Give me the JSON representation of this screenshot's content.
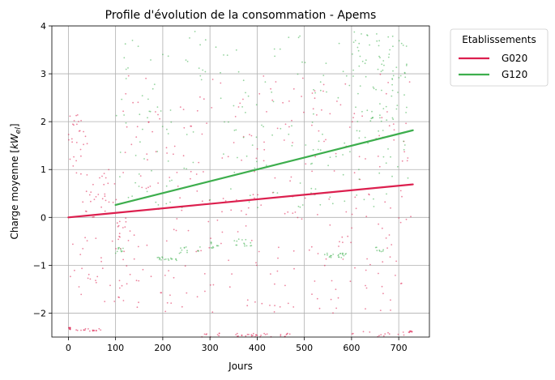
{
  "chart_data": {
    "type": "scatter",
    "title": "Profile d'évolution de la consommation - Apems",
    "xlabel": "Jours",
    "ylabel_main": "Charge moyenne [",
    "ylabel_math": "kW",
    "ylabel_sub": "el",
    "ylabel_end": "]",
    "xlim": [
      -35,
      765
    ],
    "ylim": [
      -2.5,
      4
    ],
    "xticks": [
      0,
      100,
      200,
      300,
      400,
      500,
      600,
      700
    ],
    "yticks": [
      -2,
      -1,
      0,
      1,
      2,
      3,
      4
    ],
    "grid": true,
    "legend": {
      "title": "Etablissements",
      "placement": "outside-right-top"
    },
    "series": [
      {
        "name": "G020",
        "color": "#dc1f4e",
        "trend": {
          "x": [
            0,
            730
          ],
          "y": [
            0.0,
            0.69
          ]
        },
        "clusters": [
          {
            "x": [
              0,
              5
            ],
            "y": [
              -2.35,
              -2.3
            ],
            "n": 10
          },
          {
            "x": [
              10,
              70
            ],
            "y": [
              -2.38,
              -2.32
            ],
            "n": 18
          },
          {
            "x": [
              0,
              40
            ],
            "y": [
              0.9,
              2.2
            ],
            "n": 28
          },
          {
            "x": [
              30,
              100
            ],
            "y": [
              0.0,
              1.0
            ],
            "n": 30
          },
          {
            "x": [
              0,
              100
            ],
            "y": [
              -1.8,
              -0.4
            ],
            "n": 24
          },
          {
            "x": [
              100,
              130
            ],
            "y": [
              -1.9,
              0.0
            ],
            "n": 16
          },
          {
            "x": [
              100,
              730
            ],
            "y": [
              -2.0,
              3.0
            ],
            "n": 320
          },
          {
            "x": [
              280,
              470
            ],
            "y": [
              -2.5,
              -2.42
            ],
            "n": 40
          },
          {
            "x": [
              600,
              720
            ],
            "y": [
              -2.5,
              -2.38
            ],
            "n": 14
          },
          {
            "x": [
              720,
              730
            ],
            "y": [
              -2.42,
              -2.36
            ],
            "n": 8
          }
        ]
      },
      {
        "name": "G120",
        "color": "#3dae4d",
        "trend": {
          "x": [
            100,
            730
          ],
          "y": [
            0.26,
            1.82
          ]
        },
        "clusters": [
          {
            "x": [
              100,
              720
            ],
            "y": [
              0.2,
              3.9
            ],
            "n": 220
          },
          {
            "x": [
              100,
              120
            ],
            "y": [
              -0.75,
              -0.62
            ],
            "n": 10
          },
          {
            "x": [
              180,
              230
            ],
            "y": [
              -0.9,
              -0.82
            ],
            "n": 18
          },
          {
            "x": [
              230,
              280
            ],
            "y": [
              -0.75,
              -0.6
            ],
            "n": 12
          },
          {
            "x": [
              300,
              320
            ],
            "y": [
              -0.65,
              -0.5
            ],
            "n": 10
          },
          {
            "x": [
              350,
              390
            ],
            "y": [
              -0.6,
              -0.45
            ],
            "n": 14
          },
          {
            "x": [
              540,
              590
            ],
            "y": [
              -0.84,
              -0.75
            ],
            "n": 22
          },
          {
            "x": [
              650,
              670
            ],
            "y": [
              -0.72,
              -0.6
            ],
            "n": 8
          },
          {
            "x": [
              600,
              720
            ],
            "y": [
              2.0,
              3.9
            ],
            "n": 60
          }
        ]
      }
    ]
  }
}
